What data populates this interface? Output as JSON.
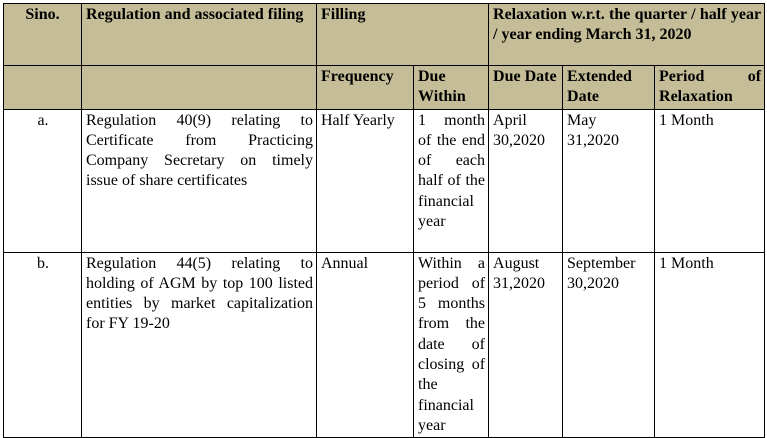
{
  "header": {
    "sino": "Sino.",
    "regulation": "Regulation and associated filing",
    "filling": "Filling",
    "relaxation": "Relaxation w.r.t. the quarter / half year / year ending March 31, 2020",
    "frequency": "Frequency",
    "due_within": "Due Within",
    "due_date": "Due Date",
    "extended_date": "Extended Date",
    "period_of_relaxation": "Period of Relaxation"
  },
  "rows": [
    {
      "sino": "a.",
      "regulation": "Regulation 40(9) relating to Certificate from Practicing Company Secretary on timely issue of share certificates",
      "frequency": "Half Yearly",
      "due_within": "1 month of the end of each half of the financial year",
      "due_date": "April 30,2020",
      "extended_date": "May 31,2020",
      "period": "1 Month"
    },
    {
      "sino": "b.",
      "regulation": "Regulation 44(5) relating to holding of AGM by top 100 listed entities by market capitalization for FY 19-20",
      "frequency": "Annual",
      "due_within": "Within a period of 5 months from the date of closing of the financial year",
      "due_date": "August 31,2020",
      "extended_date": "September 30,2020",
      "period": "1 Month"
    }
  ]
}
